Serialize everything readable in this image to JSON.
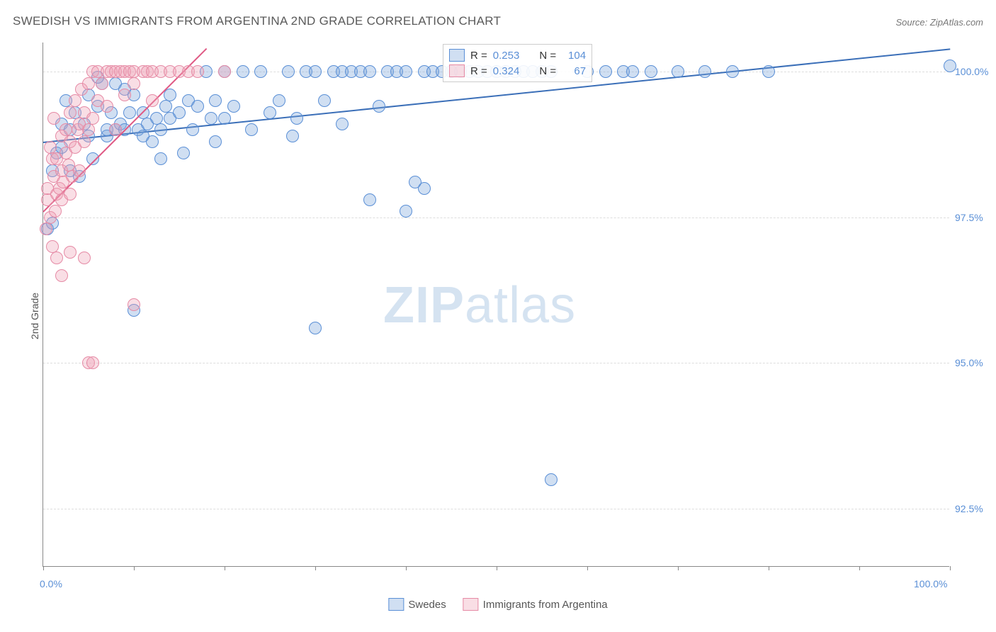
{
  "title": "SWEDISH VS IMMIGRANTS FROM ARGENTINA 2ND GRADE CORRELATION CHART",
  "source": "Source: ZipAtlas.com",
  "ylabel": "2nd Grade",
  "watermark_a": "ZIP",
  "watermark_b": "atlas",
  "chart": {
    "type": "scatter",
    "xlim": [
      0,
      100
    ],
    "ylim": [
      91.5,
      100.5
    ],
    "x_tick_positions": [
      0,
      10,
      20,
      30,
      40,
      50,
      60,
      70,
      80,
      90,
      100
    ],
    "x_tick_labels_shown": {
      "0": "0.0%",
      "100": "100.0%"
    },
    "y_grid": [
      92.5,
      95.0,
      97.5,
      100.0
    ],
    "y_tick_labels": {
      "92.5": "92.5%",
      "95.0": "95.0%",
      "97.5": "97.5%",
      "100.0": "100.0%"
    },
    "background_color": "#ffffff",
    "grid_color": "#dddddd",
    "axis_color": "#888888",
    "label_color": "#5a8fd6",
    "marker_radius": 9,
    "marker_stroke_width": 1.5,
    "series": [
      {
        "name": "Swedes",
        "fill": "rgba(120,163,219,0.35)",
        "stroke": "#5a8fd6",
        "trend_color": "#3b6fb8",
        "R": "0.253",
        "N": "104",
        "trend": {
          "x1": 0,
          "y1": 98.8,
          "x2": 100,
          "y2": 100.4
        },
        "points": [
          [
            0.5,
            97.3
          ],
          [
            1,
            97.4
          ],
          [
            1,
            98.3
          ],
          [
            1.5,
            98.6
          ],
          [
            2,
            99.1
          ],
          [
            2,
            98.7
          ],
          [
            2.5,
            99.5
          ],
          [
            3,
            98.3
          ],
          [
            3,
            99.0
          ],
          [
            3.5,
            99.3
          ],
          [
            4,
            98.2
          ],
          [
            4.5,
            99.1
          ],
          [
            5,
            98.9
          ],
          [
            5,
            99.6
          ],
          [
            5.5,
            98.5
          ],
          [
            6,
            99.4
          ],
          [
            6.5,
            99.8
          ],
          [
            7,
            98.9
          ],
          [
            7,
            99.0
          ],
          [
            7.5,
            99.3
          ],
          [
            8,
            99.0
          ],
          [
            8.5,
            99.1
          ],
          [
            9,
            99.7
          ],
          [
            9,
            99.0
          ],
          [
            9.5,
            99.3
          ],
          [
            10,
            99.6
          ],
          [
            10.5,
            99.0
          ],
          [
            11,
            99.3
          ],
          [
            11,
            98.9
          ],
          [
            11.5,
            99.1
          ],
          [
            12,
            98.8
          ],
          [
            12.5,
            99.2
          ],
          [
            13,
            99.0
          ],
          [
            13.5,
            99.4
          ],
          [
            14,
            99.6
          ],
          [
            14,
            99.2
          ],
          [
            15,
            99.3
          ],
          [
            15.5,
            98.6
          ],
          [
            16,
            99.5
          ],
          [
            16.5,
            99.0
          ],
          [
            17,
            99.4
          ],
          [
            18,
            100
          ],
          [
            18.5,
            99.2
          ],
          [
            19,
            99.5
          ],
          [
            20,
            100
          ],
          [
            20,
            99.2
          ],
          [
            21,
            99.4
          ],
          [
            22,
            100
          ],
          [
            23,
            99.0
          ],
          [
            24,
            100
          ],
          [
            25,
            99.3
          ],
          [
            26,
            99.5
          ],
          [
            27,
            100
          ],
          [
            27.5,
            98.9
          ],
          [
            28,
            99.2
          ],
          [
            29,
            100
          ],
          [
            30,
            100
          ],
          [
            31,
            99.5
          ],
          [
            32,
            100
          ],
          [
            33,
            100
          ],
          [
            34,
            100
          ],
          [
            35,
            100
          ],
          [
            36,
            100
          ],
          [
            37,
            99.4
          ],
          [
            38,
            100
          ],
          [
            39,
            100
          ],
          [
            40,
            100
          ],
          [
            41,
            98.1
          ],
          [
            42,
            100
          ],
          [
            43,
            100
          ],
          [
            44,
            100
          ],
          [
            45,
            100
          ],
          [
            46,
            100
          ],
          [
            47,
            100
          ],
          [
            48,
            100
          ],
          [
            49,
            100
          ],
          [
            50,
            100
          ],
          [
            51,
            100
          ],
          [
            52,
            100
          ],
          [
            53,
            100
          ],
          [
            54,
            100
          ],
          [
            55,
            100
          ],
          [
            56,
            100
          ],
          [
            60,
            100
          ],
          [
            62,
            100
          ],
          [
            64,
            100
          ],
          [
            65,
            100
          ],
          [
            67,
            100
          ],
          [
            70,
            100
          ],
          [
            73,
            100
          ],
          [
            76,
            100
          ],
          [
            80,
            100
          ],
          [
            10,
            95.9
          ],
          [
            30,
            95.6
          ],
          [
            36,
            97.8
          ],
          [
            40,
            97.6
          ],
          [
            42,
            98.0
          ],
          [
            56,
            93.0
          ],
          [
            100,
            100.1
          ],
          [
            6,
            99.9
          ],
          [
            8,
            99.8
          ],
          [
            13,
            98.5
          ],
          [
            19,
            98.8
          ],
          [
            33,
            99.1
          ]
        ]
      },
      {
        "name": "Immigrants from Argentina",
        "fill": "rgba(238,160,180,0.35)",
        "stroke": "#e68aa5",
        "trend_color": "#e05a85",
        "R": "0.324",
        "N": "67",
        "trend": {
          "x1": 0,
          "y1": 97.6,
          "x2": 18,
          "y2": 100.4
        },
        "points": [
          [
            0.3,
            97.3
          ],
          [
            0.5,
            97.8
          ],
          [
            0.5,
            98.0
          ],
          [
            0.8,
            97.5
          ],
          [
            1,
            97.0
          ],
          [
            1,
            98.5
          ],
          [
            1.2,
            98.2
          ],
          [
            1.3,
            97.6
          ],
          [
            1.5,
            97.9
          ],
          [
            1.5,
            98.5
          ],
          [
            1.8,
            98.0
          ],
          [
            2,
            97.8
          ],
          [
            2,
            98.3
          ],
          [
            2,
            98.9
          ],
          [
            2.2,
            98.1
          ],
          [
            2.5,
            98.6
          ],
          [
            2.5,
            99.0
          ],
          [
            2.8,
            98.4
          ],
          [
            3,
            97.9
          ],
          [
            3,
            98.8
          ],
          [
            3,
            99.3
          ],
          [
            3.2,
            98.2
          ],
          [
            3.5,
            98.7
          ],
          [
            3.5,
            99.5
          ],
          [
            3.8,
            99.0
          ],
          [
            4,
            98.3
          ],
          [
            4,
            99.1
          ],
          [
            4.2,
            99.7
          ],
          [
            4.5,
            98.8
          ],
          [
            4.5,
            99.3
          ],
          [
            5,
            99.0
          ],
          [
            5,
            99.8
          ],
          [
            5.5,
            99.2
          ],
          [
            5.5,
            100
          ],
          [
            6,
            99.5
          ],
          [
            6,
            100
          ],
          [
            6.5,
            99.8
          ],
          [
            7,
            100
          ],
          [
            7,
            99.4
          ],
          [
            7.5,
            100
          ],
          [
            8,
            99.0
          ],
          [
            8,
            100
          ],
          [
            8.5,
            100
          ],
          [
            9,
            99.6
          ],
          [
            9,
            100
          ],
          [
            9.5,
            100
          ],
          [
            10,
            99.8
          ],
          [
            10,
            100
          ],
          [
            11,
            100
          ],
          [
            11.5,
            100
          ],
          [
            12,
            99.5
          ],
          [
            12,
            100
          ],
          [
            13,
            100
          ],
          [
            14,
            100
          ],
          [
            15,
            100
          ],
          [
            16,
            100
          ],
          [
            17,
            100
          ],
          [
            20,
            100
          ],
          [
            3,
            96.9
          ],
          [
            4.5,
            96.8
          ],
          [
            5,
            95.0
          ],
          [
            5.5,
            95.0
          ],
          [
            10,
            96.0
          ],
          [
            2,
            96.5
          ],
          [
            1.5,
            96.8
          ],
          [
            0.8,
            98.7
          ],
          [
            1.2,
            99.2
          ]
        ]
      }
    ]
  },
  "legend_top": {
    "rows": [
      {
        "swatch_fill": "rgba(120,163,219,0.35)",
        "swatch_stroke": "#5a8fd6",
        "r_label": "R =",
        "r_val": "0.253",
        "n_label": "N =",
        "n_val": "104"
      },
      {
        "swatch_fill": "rgba(238,160,180,0.35)",
        "swatch_stroke": "#e68aa5",
        "r_label": "R =",
        "r_val": "0.324",
        "n_label": "N =",
        "n_val": "67"
      }
    ]
  },
  "legend_bottom": {
    "items": [
      {
        "swatch_fill": "rgba(120,163,219,0.35)",
        "swatch_stroke": "#5a8fd6",
        "label": "Swedes"
      },
      {
        "swatch_fill": "rgba(238,160,180,0.35)",
        "swatch_stroke": "#e68aa5",
        "label": "Immigrants from Argentina"
      }
    ]
  }
}
